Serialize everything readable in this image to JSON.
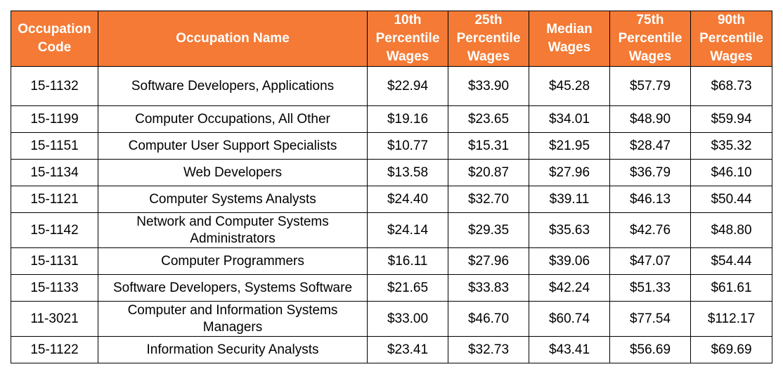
{
  "colors": {
    "header_background": "#f47a35",
    "header_text": "#ffffff",
    "border": "#000000"
  },
  "table": {
    "headers": [
      "Occupation\nCode",
      "Occupation Name",
      "10th\nPercentile\nWages",
      "25th\nPercentile\nWages",
      "Median\nWages",
      "75th\nPercentile\nWages",
      "90th\nPercentile\nWages"
    ],
    "rows": [
      {
        "code": "15-1132",
        "name": "Software Developers, Applications",
        "p10": "$22.94",
        "p25": "$33.90",
        "median": "$45.28",
        "p75": "$57.79",
        "p90": "$68.73"
      },
      {
        "code": "15-1199",
        "name": "Computer Occupations, All Other",
        "p10": "$19.16",
        "p25": "$23.65",
        "median": "$34.01",
        "p75": "$48.90",
        "p90": "$59.94"
      },
      {
        "code": "15-1151",
        "name": "Computer User Support Specialists",
        "p10": "$10.77",
        "p25": "$15.31",
        "median": "$21.95",
        "p75": "$28.47",
        "p90": "$35.32"
      },
      {
        "code": "15-1134",
        "name": "Web Developers",
        "p10": "$13.58",
        "p25": "$20.87",
        "median": "$27.96",
        "p75": "$36.79",
        "p90": "$46.10"
      },
      {
        "code": "15-1121",
        "name": "Computer Systems Analysts",
        "p10": "$24.40",
        "p25": "$32.70",
        "median": "$39.11",
        "p75": "$46.13",
        "p90": "$50.44"
      },
      {
        "code": "15-1142",
        "name": "Network and Computer Systems\nAdministrators",
        "p10": "$24.14",
        "p25": "$29.35",
        "median": "$35.63",
        "p75": "$42.76",
        "p90": "$48.80"
      },
      {
        "code": "15-1131",
        "name": "Computer Programmers",
        "p10": "$16.11",
        "p25": "$27.96",
        "median": "$39.06",
        "p75": "$47.07",
        "p90": "$54.44"
      },
      {
        "code": "15-1133",
        "name": "Software Developers, Systems Software",
        "p10": "$21.65",
        "p25": "$33.83",
        "median": "$42.24",
        "p75": "$51.33",
        "p90": "$61.61"
      },
      {
        "code": "11-3021",
        "name": "Computer and Information Systems\nManagers",
        "p10": "$33.00",
        "p25": "$46.70",
        "median": "$60.74",
        "p75": "$77.54",
        "p90": "$112.17"
      },
      {
        "code": "15-1122",
        "name": "Information Security Analysts",
        "p10": "$23.41",
        "p25": "$32.73",
        "median": "$43.41",
        "p75": "$56.69",
        "p90": "$69.69"
      }
    ]
  }
}
